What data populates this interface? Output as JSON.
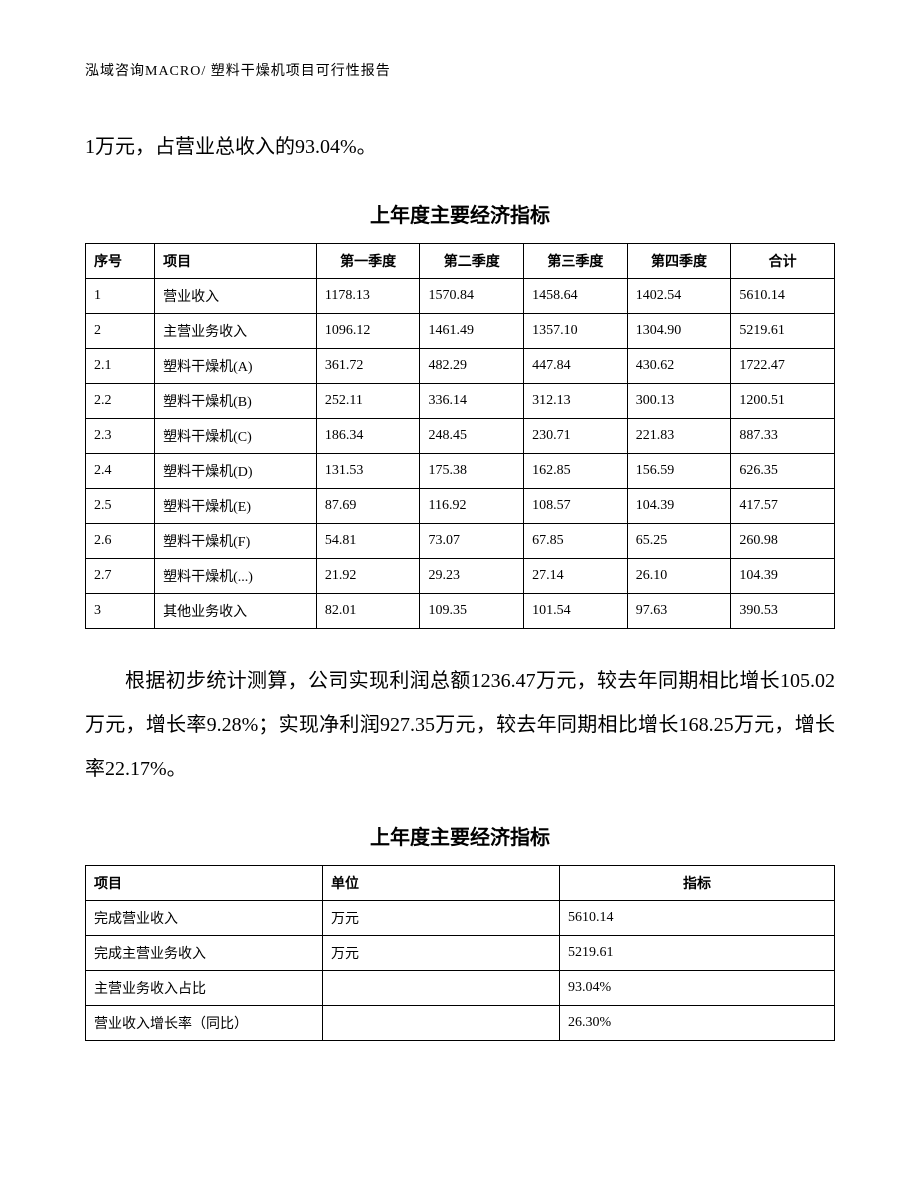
{
  "header": {
    "text": "泓域咨询MACRO/    塑料干燥机项目可行性报告"
  },
  "para1": "1万元，占营业总收入的93.04%。",
  "table1": {
    "type": "table",
    "title": "上年度主要经济指标",
    "columns": [
      "序号",
      "项目",
      "第一季度",
      "第二季度",
      "第三季度",
      "第四季度",
      "合计"
    ],
    "rows": [
      [
        "1",
        "营业收入",
        "1178.13",
        "1570.84",
        "1458.64",
        "1402.54",
        "5610.14"
      ],
      [
        "2",
        "主营业务收入",
        "1096.12",
        "1461.49",
        "1357.10",
        "1304.90",
        "5219.61"
      ],
      [
        "2.1",
        "塑料干燥机(A)",
        "361.72",
        "482.29",
        "447.84",
        "430.62",
        "1722.47"
      ],
      [
        "2.2",
        "塑料干燥机(B)",
        "252.11",
        "336.14",
        "312.13",
        "300.13",
        "1200.51"
      ],
      [
        "2.3",
        "塑料干燥机(C)",
        "186.34",
        "248.45",
        "230.71",
        "221.83",
        "887.33"
      ],
      [
        "2.4",
        "塑料干燥机(D)",
        "131.53",
        "175.38",
        "162.85",
        "156.59",
        "626.35"
      ],
      [
        "2.5",
        "塑料干燥机(E)",
        "87.69",
        "116.92",
        "108.57",
        "104.39",
        "417.57"
      ],
      [
        "2.6",
        "塑料干燥机(F)",
        "54.81",
        "73.07",
        "67.85",
        "65.25",
        "260.98"
      ],
      [
        "2.7",
        "塑料干燥机(...)",
        "21.92",
        "29.23",
        "27.14",
        "26.10",
        "104.39"
      ],
      [
        "3",
        "其他业务收入",
        "82.01",
        "109.35",
        "101.54",
        "97.63",
        "390.53"
      ]
    ]
  },
  "para2": "根据初步统计测算，公司实现利润总额1236.47万元，较去年同期相比增长105.02万元，增长率9.28%；实现净利润927.35万元，较去年同期相比增长168.25万元，增长率22.17%。",
  "table2": {
    "type": "table",
    "title": "上年度主要经济指标",
    "columns": [
      "项目",
      "单位",
      "指标"
    ],
    "rows": [
      [
        "完成营业收入",
        "万元",
        "5610.14"
      ],
      [
        "完成主营业务收入",
        "万元",
        "5219.61"
      ],
      [
        "主营业务收入占比",
        "",
        "93.04%"
      ],
      [
        "营业收入增长率（同比）",
        "",
        "26.30%"
      ]
    ]
  }
}
